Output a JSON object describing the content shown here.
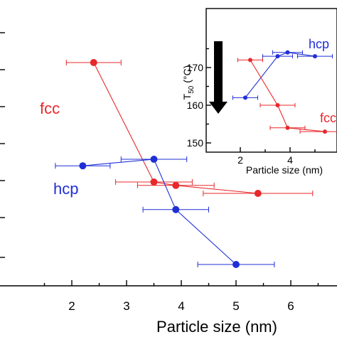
{
  "chart_data": [
    {
      "type": "scatter",
      "xlabel": "Particle size (nm)",
      "ylabel": "",
      "xlim": [
        1,
        6.4
      ],
      "ylim": [
        0,
        1
      ],
      "x_ticks": [
        2,
        3,
        4,
        5,
        6
      ],
      "y_ticks": [
        0.1,
        0.24,
        0.37,
        0.5,
        0.63,
        0.76,
        0.89
      ],
      "grid": false,
      "series": [
        {
          "name": "fcc",
          "color": "#e8282b",
          "points": [
            {
              "x": 2.4,
              "y": 0.785,
              "xerr": 0.5
            },
            {
              "x": 3.5,
              "y": 0.365,
              "xerr": 0.7
            },
            {
              "x": 3.9,
              "y": 0.353,
              "xerr": 0.7
            },
            {
              "x": 5.4,
              "y": 0.325,
              "xerr": 1.0
            }
          ]
        },
        {
          "name": "hcp",
          "color": "#1f2fd6",
          "points": [
            {
              "x": 2.2,
              "y": 0.422,
              "xerr": 0.5
            },
            {
              "x": 3.5,
              "y": 0.445,
              "xerr": 0.6
            },
            {
              "x": 3.9,
              "y": 0.268,
              "xerr": 0.6
            },
            {
              "x": 5.0,
              "y": 0.075,
              "xerr": 0.7
            }
          ]
        }
      ]
    },
    {
      "type": "scatter",
      "xlabel": "Particle size (nm)",
      "ylabel": "T50 (°C)",
      "ylabel_main": "T",
      "ylabel_sub": "50",
      "ylabel_unit": " (°C)",
      "xlim": [
        1,
        5.6
      ],
      "ylim": [
        150,
        176
      ],
      "x_ticks": [
        2,
        4
      ],
      "y_ticks": [
        150,
        160,
        170
      ],
      "annotation": "down-arrow",
      "series": [
        {
          "name": "hcp",
          "color": "#1f2fd6",
          "points": [
            {
              "x": 2.2,
              "y": 162,
              "xerr": 0.5
            },
            {
              "x": 3.5,
              "y": 173,
              "xerr": 0.6
            },
            {
              "x": 3.9,
              "y": 174,
              "xerr": 0.6
            },
            {
              "x": 5.0,
              "y": 173,
              "xerr": 0.7
            }
          ]
        },
        {
          "name": "fcc",
          "color": "#e8282b",
          "points": [
            {
              "x": 2.4,
              "y": 172,
              "xerr": 0.5
            },
            {
              "x": 3.5,
              "y": 160,
              "xerr": 0.7
            },
            {
              "x": 3.9,
              "y": 154,
              "xerr": 0.7
            },
            {
              "x": 5.4,
              "y": 153,
              "xerr": 1.0
            }
          ]
        }
      ]
    }
  ]
}
